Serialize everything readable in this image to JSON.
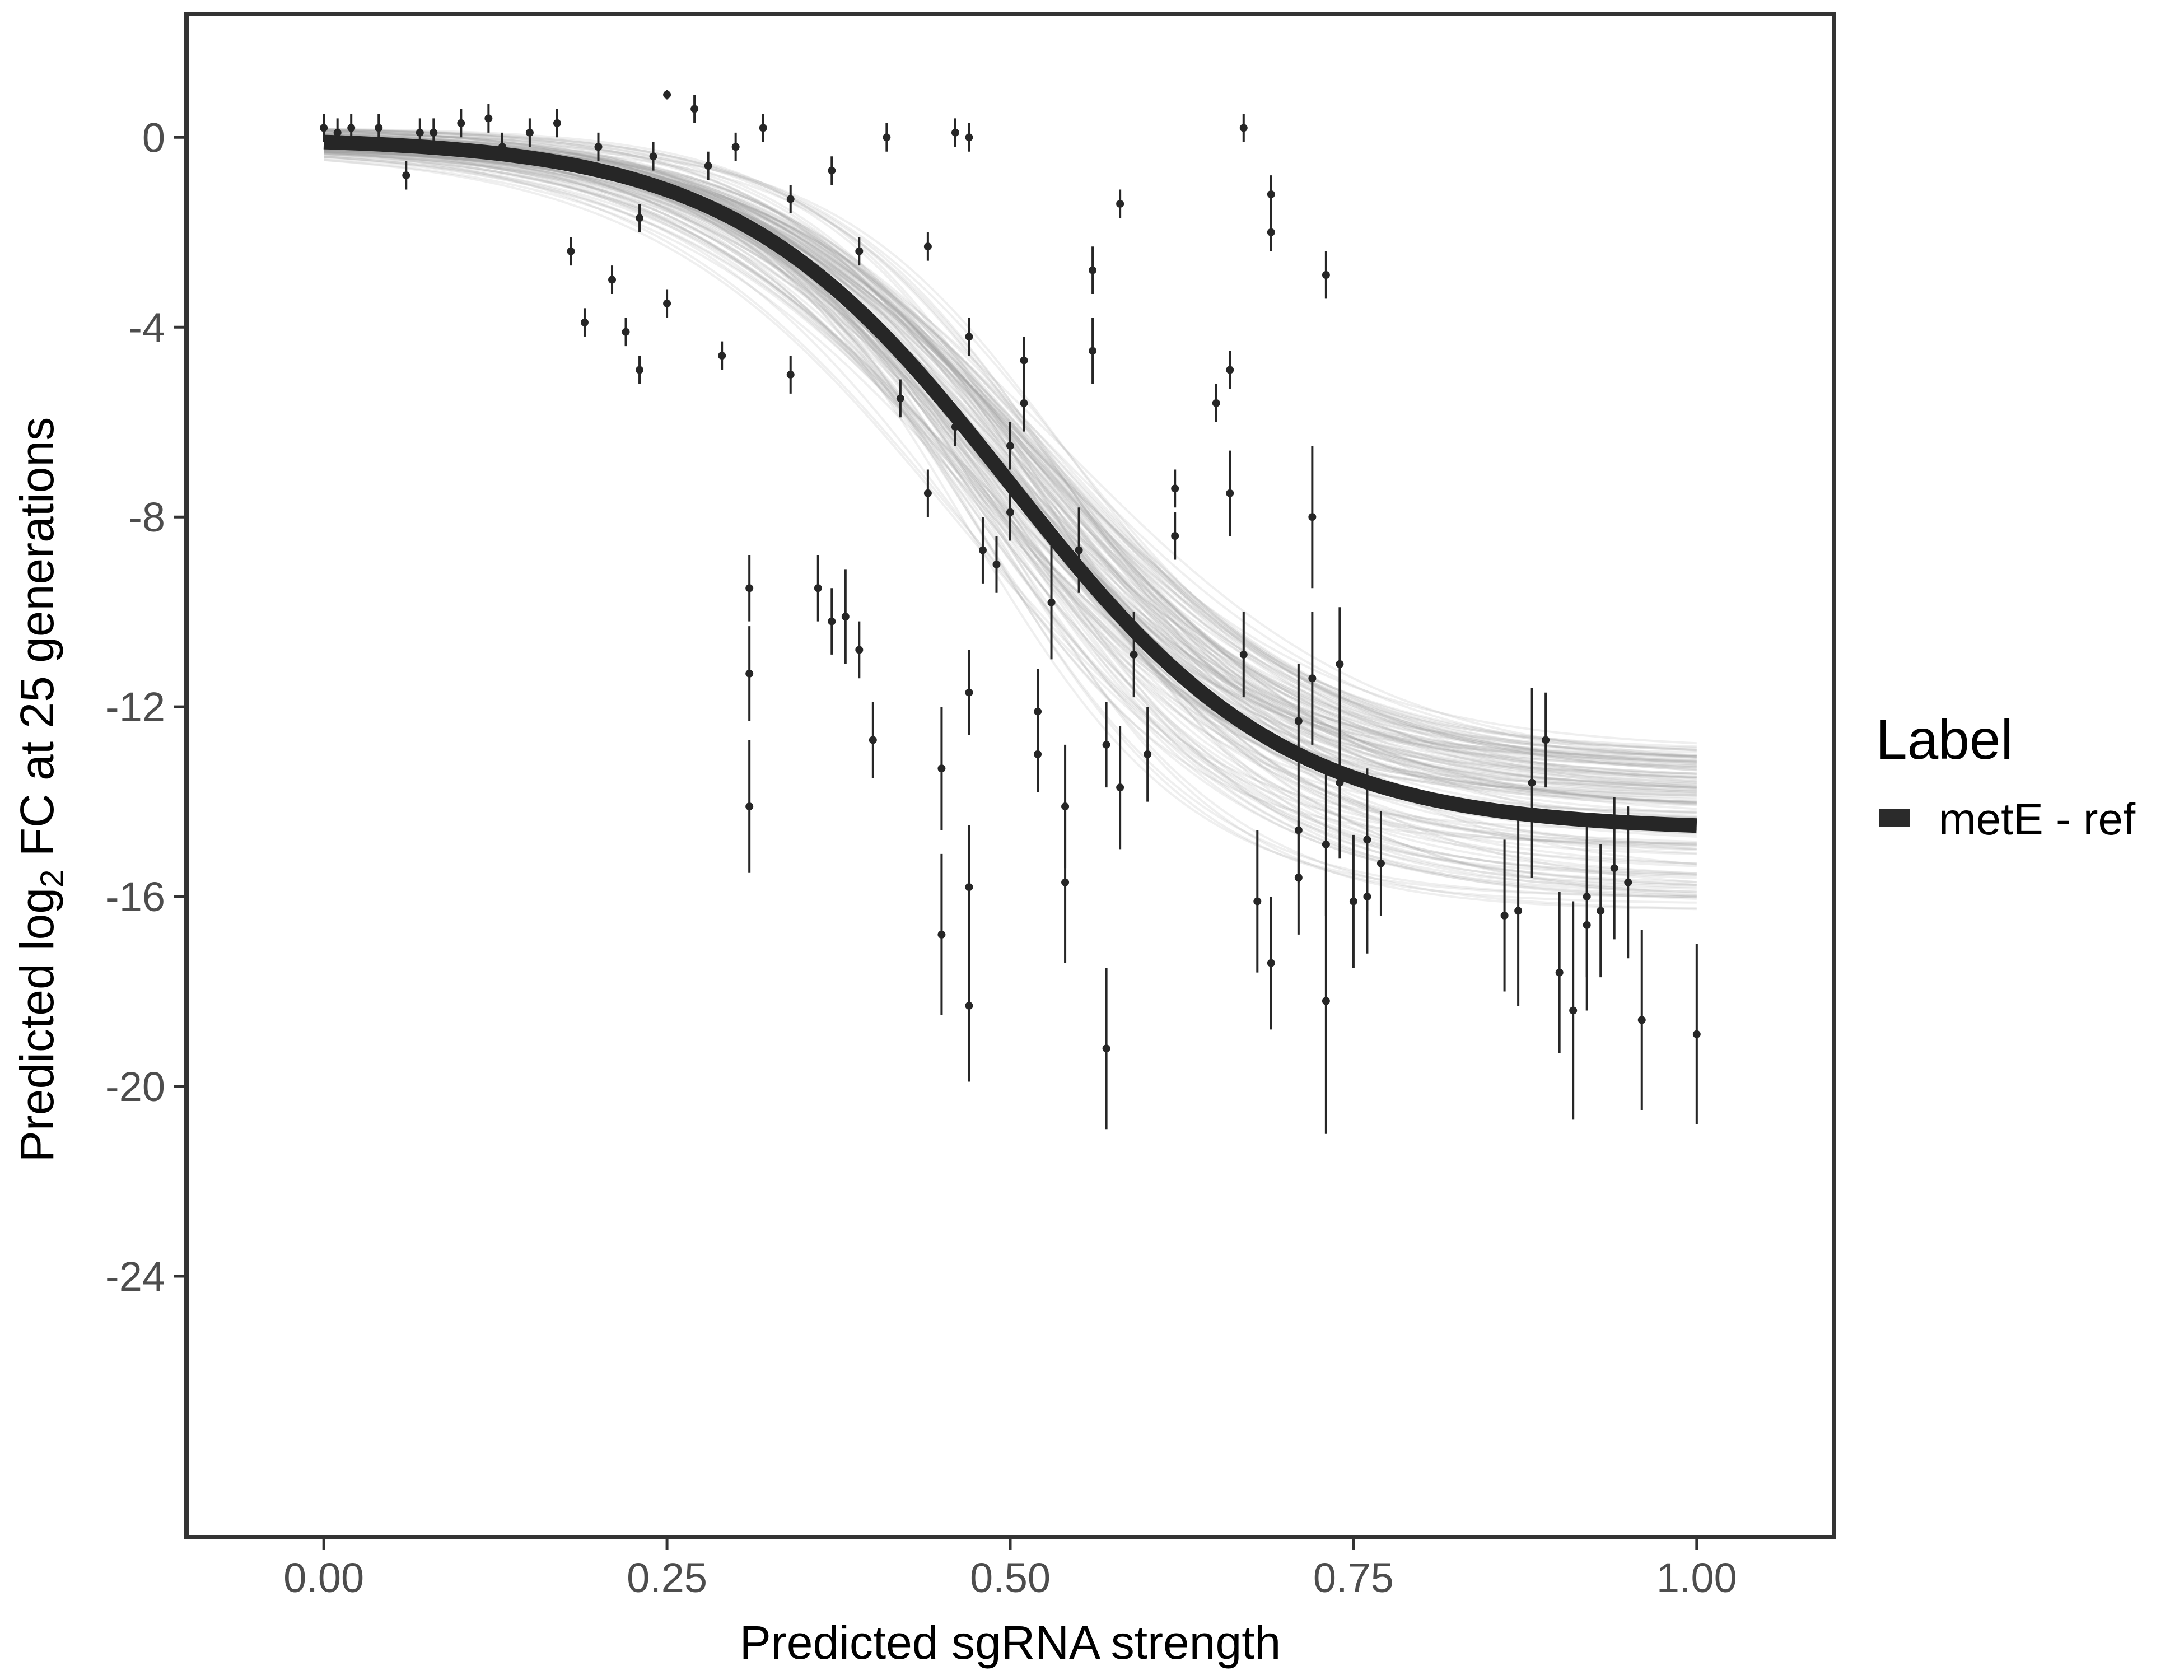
{
  "chart_data": {
    "type": "scatter",
    "xlabel": "Predicted sgRNA strength",
    "ylabel_prefix": "Predicted  log",
    "ylabel_subscript": "2",
    "ylabel_suffix": " FC at 25 generations",
    "xlim": [
      -0.1,
      1.1
    ],
    "ylim": [
      -29.5,
      2.6
    ],
    "x_ticks": [
      0.0,
      0.25,
      0.5,
      0.75,
      1.0
    ],
    "x_tick_labels": [
      "0.00",
      "0.25",
      "0.50",
      "0.75",
      "1.00"
    ],
    "y_ticks": [
      0,
      -4,
      -8,
      -12,
      -16,
      -20,
      -24
    ],
    "y_tick_labels": [
      "0",
      "-4",
      "-8",
      "-12",
      "-16",
      "-20",
      "-24"
    ],
    "grid": false,
    "legend": {
      "title": "Label",
      "position": "right",
      "entries": [
        {
          "label": "metE - ref",
          "color": "#2b2b2b"
        }
      ]
    },
    "colors": {
      "fit_line": "#262626",
      "ensemble_lines": "#9a9a9a",
      "points": "#262626",
      "panel_border": "#333333"
    },
    "fit_curve": {
      "name": "metE - ref",
      "model": "logistic",
      "description_params": {
        "lower": -14.6,
        "upper": 0.0,
        "midpoint": 0.5,
        "scale": 0.1
      }
    },
    "series": [
      {
        "name": "metE - ref",
        "points": [
          {
            "x": 0.0,
            "y": 0.2,
            "err": 0.3
          },
          {
            "x": 0.01,
            "y": 0.1,
            "err": 0.3
          },
          {
            "x": 0.02,
            "y": 0.2,
            "err": 0.3
          },
          {
            "x": 0.04,
            "y": 0.2,
            "err": 0.3
          },
          {
            "x": 0.06,
            "y": -0.8,
            "err": 0.3
          },
          {
            "x": 0.07,
            "y": 0.1,
            "err": 0.3
          },
          {
            "x": 0.08,
            "y": 0.1,
            "err": 0.3
          },
          {
            "x": 0.1,
            "y": 0.3,
            "err": 0.3
          },
          {
            "x": 0.12,
            "y": 0.4,
            "err": 0.3
          },
          {
            "x": 0.13,
            "y": -0.2,
            "err": 0.3
          },
          {
            "x": 0.15,
            "y": 0.1,
            "err": 0.3
          },
          {
            "x": 0.17,
            "y": 0.3,
            "err": 0.3
          },
          {
            "x": 0.18,
            "y": -2.4,
            "err": 0.3
          },
          {
            "x": 0.19,
            "y": -3.9,
            "err": 0.3
          },
          {
            "x": 0.2,
            "y": -0.2,
            "err": 0.3
          },
          {
            "x": 0.21,
            "y": -3.0,
            "err": 0.3
          },
          {
            "x": 0.22,
            "y": -4.1,
            "err": 0.3
          },
          {
            "x": 0.23,
            "y": -4.9,
            "err": 0.3
          },
          {
            "x": 0.23,
            "y": -1.7,
            "err": 0.3
          },
          {
            "x": 0.24,
            "y": -0.4,
            "err": 0.3
          },
          {
            "x": 0.25,
            "y": -3.5,
            "err": 0.3
          },
          {
            "x": 0.25,
            "y": 0.9,
            "err": 0.1
          },
          {
            "x": 0.27,
            "y": 0.6,
            "err": 0.3
          },
          {
            "x": 0.28,
            "y": -0.6,
            "err": 0.3
          },
          {
            "x": 0.29,
            "y": -4.6,
            "err": 0.3
          },
          {
            "x": 0.3,
            "y": -0.2,
            "err": 0.3
          },
          {
            "x": 0.31,
            "y": -14.1,
            "err": 1.4
          },
          {
            "x": 0.31,
            "y": -11.3,
            "err": 1.0
          },
          {
            "x": 0.31,
            "y": -9.5,
            "err": 0.7
          },
          {
            "x": 0.32,
            "y": 0.2,
            "err": 0.3
          },
          {
            "x": 0.34,
            "y": -5.0,
            "err": 0.4
          },
          {
            "x": 0.34,
            "y": -1.3,
            "err": 0.3
          },
          {
            "x": 0.36,
            "y": -9.5,
            "err": 0.7
          },
          {
            "x": 0.37,
            "y": -10.2,
            "err": 0.7
          },
          {
            "x": 0.37,
            "y": -0.7,
            "err": 0.3
          },
          {
            "x": 0.38,
            "y": -10.1,
            "err": 1.0
          },
          {
            "x": 0.39,
            "y": -10.8,
            "err": 0.6
          },
          {
            "x": 0.39,
            "y": -2.4,
            "err": 0.3
          },
          {
            "x": 0.4,
            "y": -12.7,
            "err": 0.8
          },
          {
            "x": 0.41,
            "y": 0.0,
            "err": 0.3
          },
          {
            "x": 0.42,
            "y": -5.5,
            "err": 0.4
          },
          {
            "x": 0.44,
            "y": -7.5,
            "err": 0.5
          },
          {
            "x": 0.44,
            "y": -2.3,
            "err": 0.3
          },
          {
            "x": 0.45,
            "y": -13.3,
            "err": 1.3
          },
          {
            "x": 0.45,
            "y": -16.8,
            "err": 1.7
          },
          {
            "x": 0.46,
            "y": -6.1,
            "err": 0.4
          },
          {
            "x": 0.46,
            "y": 0.1,
            "err": 0.3
          },
          {
            "x": 0.47,
            "y": -18.3,
            "err": 1.6
          },
          {
            "x": 0.47,
            "y": -15.8,
            "err": 1.3
          },
          {
            "x": 0.47,
            "y": -11.7,
            "err": 0.9
          },
          {
            "x": 0.47,
            "y": -4.2,
            "err": 0.4
          },
          {
            "x": 0.47,
            "y": 0.0,
            "err": 0.3
          },
          {
            "x": 0.48,
            "y": -8.7,
            "err": 0.7
          },
          {
            "x": 0.49,
            "y": -9.0,
            "err": 0.6
          },
          {
            "x": 0.5,
            "y": -6.5,
            "err": 0.5
          },
          {
            "x": 0.5,
            "y": -7.9,
            "err": 0.6
          },
          {
            "x": 0.51,
            "y": -4.7,
            "err": 0.5
          },
          {
            "x": 0.51,
            "y": -5.6,
            "err": 0.6
          },
          {
            "x": 0.52,
            "y": -12.1,
            "err": 0.9
          },
          {
            "x": 0.52,
            "y": -13.0,
            "err": 0.8
          },
          {
            "x": 0.53,
            "y": -9.8,
            "err": 1.2
          },
          {
            "x": 0.54,
            "y": -14.1,
            "err": 1.3
          },
          {
            "x": 0.54,
            "y": -15.7,
            "err": 1.7
          },
          {
            "x": 0.55,
            "y": -8.7,
            "err": 0.9
          },
          {
            "x": 0.56,
            "y": -4.5,
            "err": 0.7
          },
          {
            "x": 0.56,
            "y": -2.8,
            "err": 0.5
          },
          {
            "x": 0.57,
            "y": -12.8,
            "err": 0.9
          },
          {
            "x": 0.57,
            "y": -19.2,
            "err": 1.7
          },
          {
            "x": 0.58,
            "y": -1.4,
            "err": 0.3
          },
          {
            "x": 0.58,
            "y": -13.7,
            "err": 1.3
          },
          {
            "x": 0.59,
            "y": -10.9,
            "err": 0.9
          },
          {
            "x": 0.6,
            "y": -13.0,
            "err": 1.0
          },
          {
            "x": 0.62,
            "y": -8.4,
            "err": 0.5
          },
          {
            "x": 0.62,
            "y": -7.4,
            "err": 0.4
          },
          {
            "x": 0.65,
            "y": -5.6,
            "err": 0.4
          },
          {
            "x": 0.66,
            "y": -4.9,
            "err": 0.4
          },
          {
            "x": 0.66,
            "y": -7.5,
            "err": 0.9
          },
          {
            "x": 0.67,
            "y": 0.2,
            "err": 0.3
          },
          {
            "x": 0.67,
            "y": -10.9,
            "err": 0.9
          },
          {
            "x": 0.68,
            "y": -16.1,
            "err": 1.5
          },
          {
            "x": 0.69,
            "y": -17.4,
            "err": 1.4
          },
          {
            "x": 0.69,
            "y": -1.2,
            "err": 0.4
          },
          {
            "x": 0.69,
            "y": -2.0,
            "err": 0.4
          },
          {
            "x": 0.71,
            "y": -14.6,
            "err": 1.1
          },
          {
            "x": 0.71,
            "y": -15.6,
            "err": 1.2
          },
          {
            "x": 0.71,
            "y": -12.3,
            "err": 1.2
          },
          {
            "x": 0.72,
            "y": -8.0,
            "err": 1.5
          },
          {
            "x": 0.72,
            "y": -11.4,
            "err": 1.4
          },
          {
            "x": 0.73,
            "y": -2.9,
            "err": 0.5
          },
          {
            "x": 0.73,
            "y": -14.9,
            "err": 1.5
          },
          {
            "x": 0.73,
            "y": -18.2,
            "err": 2.8
          },
          {
            "x": 0.74,
            "y": -11.1,
            "err": 1.2
          },
          {
            "x": 0.74,
            "y": -13.6,
            "err": 1.6
          },
          {
            "x": 0.75,
            "y": -16.1,
            "err": 1.4
          },
          {
            "x": 0.76,
            "y": -14.8,
            "err": 1.5
          },
          {
            "x": 0.76,
            "y": -16.0,
            "err": 1.2
          },
          {
            "x": 0.77,
            "y": -15.3,
            "err": 1.1
          },
          {
            "x": 0.86,
            "y": -16.4,
            "err": 1.6
          },
          {
            "x": 0.87,
            "y": -16.3,
            "err": 2.0
          },
          {
            "x": 0.88,
            "y": -13.6,
            "err": 2.0
          },
          {
            "x": 0.89,
            "y": -12.7,
            "err": 1.0
          },
          {
            "x": 0.9,
            "y": -17.6,
            "err": 1.7
          },
          {
            "x": 0.91,
            "y": -18.4,
            "err": 2.3
          },
          {
            "x": 0.92,
            "y": -16.6,
            "err": 1.8
          },
          {
            "x": 0.92,
            "y": -16.0,
            "err": 1.7
          },
          {
            "x": 0.93,
            "y": -16.3,
            "err": 1.4
          },
          {
            "x": 0.94,
            "y": -15.4,
            "err": 1.5
          },
          {
            "x": 0.95,
            "y": -15.7,
            "err": 1.6
          },
          {
            "x": 0.96,
            "y": -18.6,
            "err": 1.9
          },
          {
            "x": 1.0,
            "y": -18.9,
            "err": 1.9
          }
        ]
      }
    ]
  }
}
